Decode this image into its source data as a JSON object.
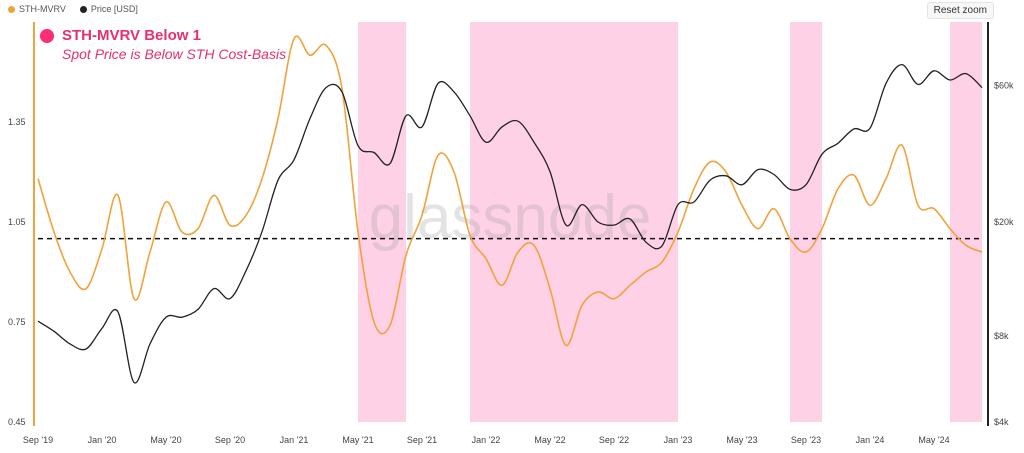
{
  "legend": {
    "items": [
      {
        "label": "STH-MVRV",
        "color": "#f2a23a"
      },
      {
        "label": "Price [USD]",
        "color": "#222222"
      }
    ]
  },
  "toolbar": {
    "reset_zoom": "Reset zoom"
  },
  "annotation": {
    "title": "STH-MVRV Below 1",
    "subtitle": "Spot Price is Below STH Cost-Basis",
    "color": "#e8306e"
  },
  "watermark": "glassnode",
  "chart_data": {
    "type": "line",
    "x_start": "2019-09",
    "x_end": "2024-08",
    "x_tick_labels": [
      "Sep '19",
      "Jan '20",
      "May '20",
      "Sep '20",
      "Jan '21",
      "May '21",
      "Sep '21",
      "Jan '22",
      "May '22",
      "Sep '22",
      "Jan '23",
      "May '23",
      "Sep '23",
      "Jan '24",
      "May '24"
    ],
    "y_left": {
      "label": "",
      "ticks": [
        0.45,
        0.75,
        1.05,
        1.35
      ],
      "tick_labels": [
        "0.45",
        "0.75",
        "1.05",
        "1.35"
      ],
      "range": [
        0.45,
        1.65
      ]
    },
    "y_right": {
      "label": "",
      "scale": "log",
      "ticks": [
        4000,
        8000,
        20000,
        60000
      ],
      "tick_labels": [
        "$4k",
        "$8k",
        "$20k",
        "$60k"
      ],
      "range": [
        4000,
        100000
      ]
    },
    "reference_line": {
      "value": 1.0,
      "style": "dashed",
      "color": "#111111"
    },
    "shaded_regions": [
      {
        "start": "2021-05",
        "end": "2021-08"
      },
      {
        "start": "2021-12",
        "end": "2023-01"
      },
      {
        "start": "2023-08",
        "end": "2023-10"
      },
      {
        "start": "2024-06",
        "end": "2024-08"
      }
    ],
    "shade_color": "#ffd1e6",
    "series": [
      {
        "name": "STH-MVRV",
        "axis": "left",
        "color": "#f2a23a",
        "points": [
          [
            "2019-09",
            1.18
          ],
          [
            "2019-10",
            1.02
          ],
          [
            "2019-11",
            0.9
          ],
          [
            "2019-12",
            0.85
          ],
          [
            "2020-01",
            0.97
          ],
          [
            "2020-02",
            1.13
          ],
          [
            "2020-03",
            0.82
          ],
          [
            "2020-04",
            0.96
          ],
          [
            "2020-05",
            1.11
          ],
          [
            "2020-06",
            1.02
          ],
          [
            "2020-07",
            1.03
          ],
          [
            "2020-08",
            1.13
          ],
          [
            "2020-09",
            1.04
          ],
          [
            "2020-10",
            1.07
          ],
          [
            "2020-11",
            1.18
          ],
          [
            "2020-12",
            1.36
          ],
          [
            "2021-01",
            1.6
          ],
          [
            "2021-02",
            1.55
          ],
          [
            "2021-03",
            1.58
          ],
          [
            "2021-04",
            1.45
          ],
          [
            "2021-05",
            1.02
          ],
          [
            "2021-06",
            0.75
          ],
          [
            "2021-07",
            0.74
          ],
          [
            "2021-08",
            0.95
          ],
          [
            "2021-09",
            1.07
          ],
          [
            "2021-10",
            1.25
          ],
          [
            "2021-11",
            1.2
          ],
          [
            "2021-12",
            1.01
          ],
          [
            "2022-01",
            0.94
          ],
          [
            "2022-02",
            0.86
          ],
          [
            "2022-03",
            0.96
          ],
          [
            "2022-04",
            0.98
          ],
          [
            "2022-05",
            0.85
          ],
          [
            "2022-06",
            0.68
          ],
          [
            "2022-07",
            0.8
          ],
          [
            "2022-08",
            0.84
          ],
          [
            "2022-09",
            0.82
          ],
          [
            "2022-10",
            0.86
          ],
          [
            "2022-11",
            0.9
          ],
          [
            "2022-12",
            0.93
          ],
          [
            "2023-01",
            1.02
          ],
          [
            "2023-02",
            1.15
          ],
          [
            "2023-03",
            1.23
          ],
          [
            "2023-04",
            1.2
          ],
          [
            "2023-05",
            1.1
          ],
          [
            "2023-06",
            1.03
          ],
          [
            "2023-07",
            1.09
          ],
          [
            "2023-08",
            1.0
          ],
          [
            "2023-09",
            0.96
          ],
          [
            "2023-10",
            1.03
          ],
          [
            "2023-11",
            1.15
          ],
          [
            "2023-12",
            1.19
          ],
          [
            "2024-01",
            1.1
          ],
          [
            "2024-02",
            1.18
          ],
          [
            "2024-03",
            1.28
          ],
          [
            "2024-04",
            1.1
          ],
          [
            "2024-05",
            1.09
          ],
          [
            "2024-06",
            1.03
          ],
          [
            "2024-07",
            0.98
          ],
          [
            "2024-08",
            0.96
          ]
        ]
      },
      {
        "name": "Price [USD]",
        "axis": "right",
        "color": "#222222",
        "points": [
          [
            "2019-09",
            9000
          ],
          [
            "2019-10",
            8300
          ],
          [
            "2019-11",
            7500
          ],
          [
            "2019-12",
            7200
          ],
          [
            "2020-01",
            8500
          ],
          [
            "2020-02",
            9700
          ],
          [
            "2020-03",
            5500
          ],
          [
            "2020-04",
            7500
          ],
          [
            "2020-05",
            9300
          ],
          [
            "2020-06",
            9300
          ],
          [
            "2020-07",
            9900
          ],
          [
            "2020-08",
            11700
          ],
          [
            "2020-09",
            10800
          ],
          [
            "2020-10",
            13500
          ],
          [
            "2020-11",
            18500
          ],
          [
            "2020-12",
            28000
          ],
          [
            "2021-01",
            33000
          ],
          [
            "2021-02",
            46000
          ],
          [
            "2021-03",
            59000
          ],
          [
            "2021-04",
            57000
          ],
          [
            "2021-05",
            37000
          ],
          [
            "2021-06",
            35000
          ],
          [
            "2021-07",
            32000
          ],
          [
            "2021-08",
            47000
          ],
          [
            "2021-09",
            43000
          ],
          [
            "2021-10",
            61000
          ],
          [
            "2021-11",
            57000
          ],
          [
            "2021-12",
            47000
          ],
          [
            "2022-01",
            38000
          ],
          [
            "2022-02",
            43000
          ],
          [
            "2022-03",
            45000
          ],
          [
            "2022-04",
            38000
          ],
          [
            "2022-05",
            30000
          ],
          [
            "2022-06",
            19500
          ],
          [
            "2022-07",
            23000
          ],
          [
            "2022-08",
            20000
          ],
          [
            "2022-09",
            19500
          ],
          [
            "2022-10",
            20500
          ],
          [
            "2022-11",
            17000
          ],
          [
            "2022-12",
            16500
          ],
          [
            "2023-01",
            23000
          ],
          [
            "2023-02",
            23500
          ],
          [
            "2023-03",
            28000
          ],
          [
            "2023-04",
            29000
          ],
          [
            "2023-05",
            27000
          ],
          [
            "2023-06",
            30500
          ],
          [
            "2023-07",
            29300
          ],
          [
            "2023-08",
            26000
          ],
          [
            "2023-09",
            27000
          ],
          [
            "2023-10",
            34500
          ],
          [
            "2023-11",
            37700
          ],
          [
            "2023-12",
            42300
          ],
          [
            "2024-01",
            42500
          ],
          [
            "2024-02",
            61000
          ],
          [
            "2024-03",
            71000
          ],
          [
            "2024-04",
            60500
          ],
          [
            "2024-05",
            67500
          ],
          [
            "2024-06",
            62700
          ],
          [
            "2024-07",
            66000
          ],
          [
            "2024-08",
            59000
          ]
        ]
      }
    ]
  }
}
